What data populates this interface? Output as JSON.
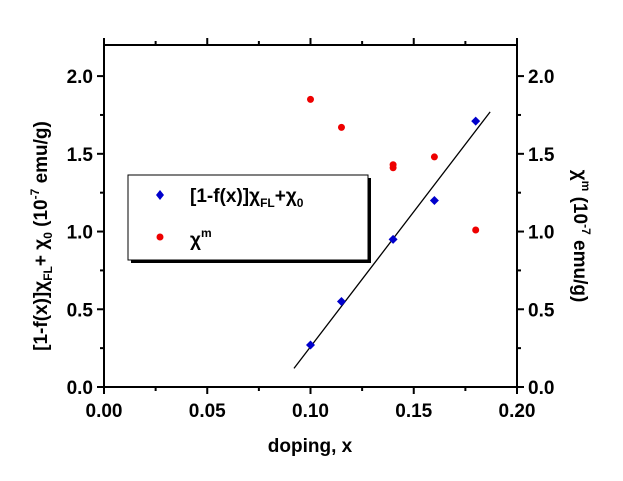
{
  "chart_data": {
    "type": "scatter",
    "xlabel": "doping, x",
    "ylabel_left": {
      "prefix": "[1-f(x)]",
      "chi1": "χ",
      "sub1": "FL",
      "plus": "+ ",
      "chi2": "χ",
      "sub2": "0",
      "unit_pre": " (10",
      "unit_sup": "-7",
      "unit_post": " emu/g)"
    },
    "ylabel_right": {
      "chi": "χ",
      "sup": "m",
      "unit_pre": " (10",
      "unit_sup": "-7",
      "unit_post": " emu/g)"
    },
    "xlim": [
      0.0,
      0.2
    ],
    "ylim": [
      0.0,
      2.2
    ],
    "x_ticks": [
      "0.00",
      "0.05",
      "0.10",
      "0.15",
      "0.20"
    ],
    "y_ticks": [
      "0.0",
      "0.5",
      "1.0",
      "1.5",
      "2.0"
    ],
    "grid": false,
    "legend_position": "center-left",
    "series": [
      {
        "name": "[1-f(x)]χFL+χ0",
        "legend": {
          "prefix": "[1-f(x)]",
          "chi1": "χ",
          "sub1": "FL",
          "plus": "+",
          "chi2": "χ",
          "sub2": "0"
        },
        "marker": "diamond",
        "color": "#0000cc",
        "x": [
          0.1,
          0.115,
          0.14,
          0.16,
          0.18
        ],
        "y": [
          0.27,
          0.55,
          0.95,
          1.2,
          1.71
        ]
      },
      {
        "name": "χm",
        "legend": {
          "chi": "χ",
          "sup": "m"
        },
        "marker": "circle",
        "color": "#ee0000",
        "x": [
          0.1,
          0.115,
          0.14,
          0.14,
          0.16,
          0.18
        ],
        "y": [
          1.85,
          1.67,
          1.41,
          1.43,
          1.48,
          1.01
        ]
      }
    ],
    "fit_line": {
      "color": "#000000",
      "x": [
        0.092,
        0.187
      ],
      "y": [
        0.12,
        1.77
      ]
    }
  }
}
